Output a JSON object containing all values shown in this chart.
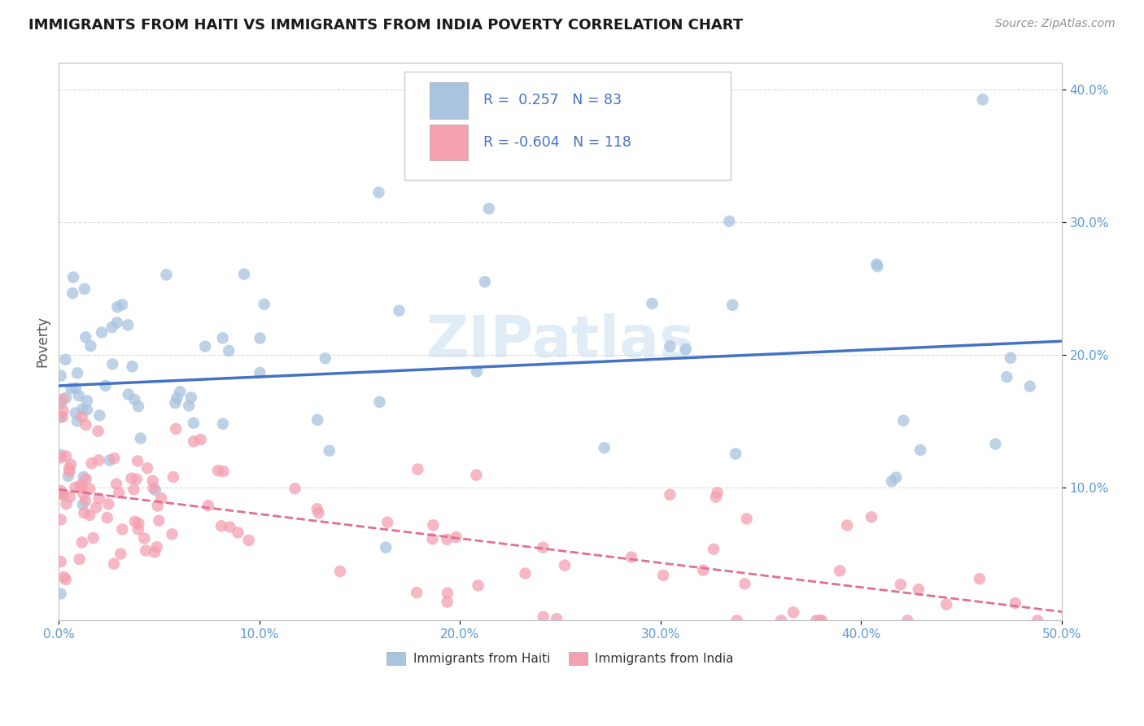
{
  "title": "IMMIGRANTS FROM HAITI VS IMMIGRANTS FROM INDIA POVERTY CORRELATION CHART",
  "source": "Source: ZipAtlas.com",
  "ylabel": "Poverty",
  "haiti_R": 0.257,
  "haiti_N": 83,
  "india_R": -0.604,
  "india_N": 118,
  "haiti_color": "#a8c4e0",
  "india_color": "#f4a0b0",
  "haiti_line_color": "#4472c4",
  "india_line_color": "#e07090",
  "legend_haiti": "Immigrants from Haiti",
  "legend_india": "Immigrants from India",
  "xlim": [
    0.0,
    0.5
  ],
  "ylim": [
    0.0,
    0.42
  ],
  "watermark": "ZIPatlas",
  "watermark_color": "#c8ddf0",
  "tick_color": "#5b9bd5",
  "title_color": "#1a1a1a",
  "source_color": "#909090",
  "grid_color": "#d8d8d8",
  "legend_text_color": "#4472c4",
  "legend_box_color": "#e8e8e8"
}
